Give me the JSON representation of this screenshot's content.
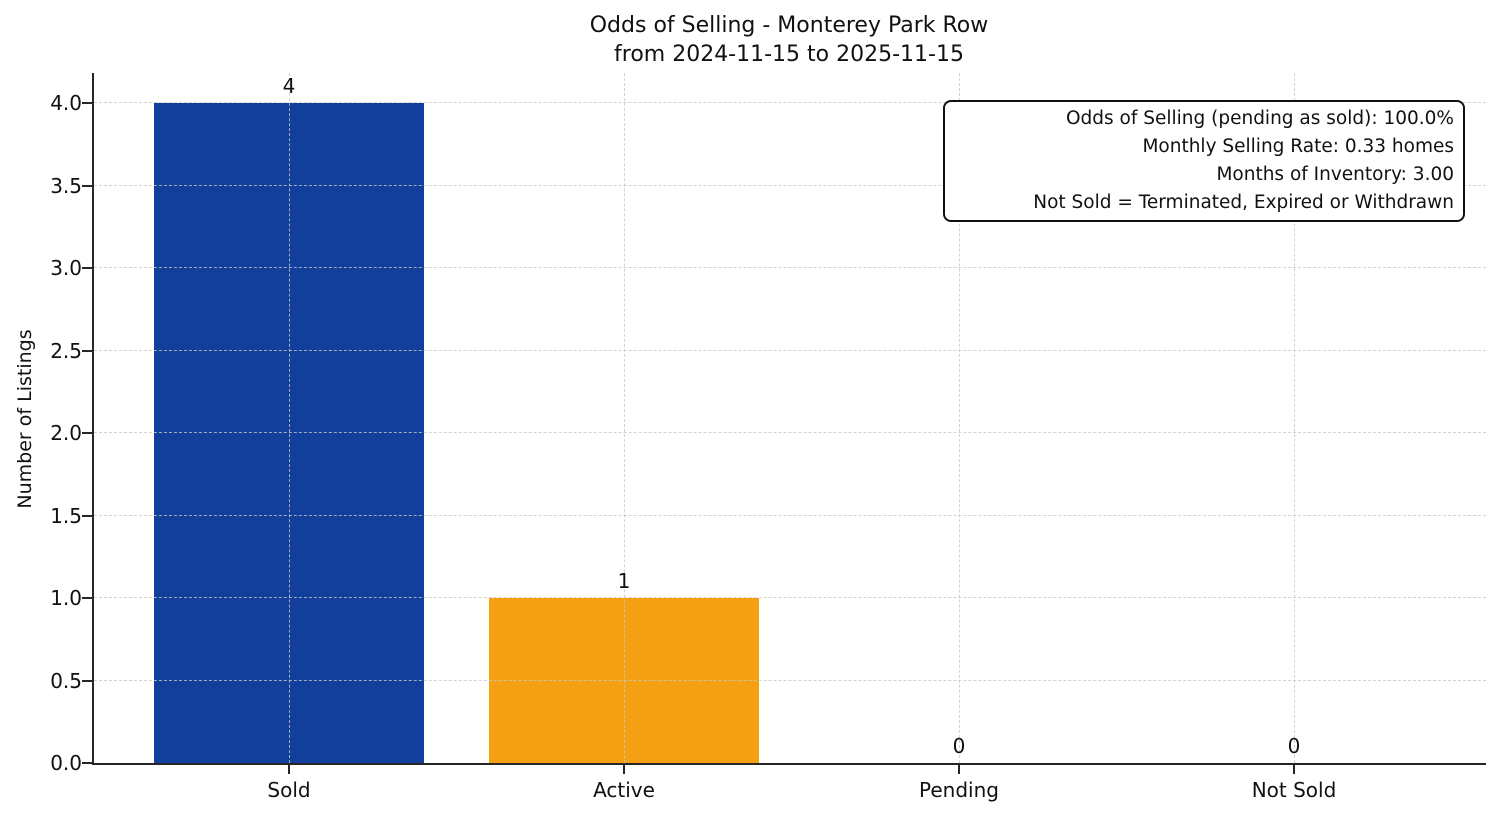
{
  "chart_data": {
    "type": "bar",
    "title": "Odds of Selling - Monterey Park Row",
    "subtitle": "from 2024-11-15 to 2025-11-15",
    "categories": [
      "Sold",
      "Active",
      "Pending",
      "Not Sold"
    ],
    "values": [
      4,
      1,
      0,
      0
    ],
    "bar_value_labels": [
      "4",
      "1",
      "0",
      "0"
    ],
    "bar_colors": [
      "#123f9b",
      "#f5a013",
      null,
      null
    ],
    "xlabel": "",
    "ylabel": "Number of Listings",
    "yticks": [
      0,
      0.5,
      1,
      1.5,
      2,
      2.5,
      3,
      3.5,
      4
    ],
    "ytick_labels": [
      "0.0",
      "0.5",
      "1.0",
      "1.5",
      "2.0",
      "2.5",
      "3.0",
      "3.5",
      "4.0"
    ],
    "ylim": [
      0,
      4.2
    ],
    "grid": {
      "style": "dashed",
      "axes": "both",
      "color": "#c8c8c8",
      "above_bars": true
    },
    "legend": "none",
    "annotation_box": {
      "position": "top-right",
      "lines": [
        "Odds of Selling (pending as sold): 100.0%",
        "Monthly Selling Rate: 0.33 homes",
        "Months of Inventory: 3.00",
        "Not Sold = Terminated, Expired or Withdrawn"
      ]
    }
  }
}
